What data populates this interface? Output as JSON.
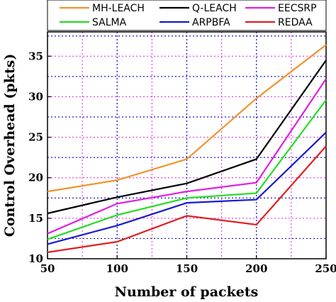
{
  "chart_data": {
    "type": "line",
    "xlabel": "Number of packets",
    "ylabel": "Control Overhead (pkts)",
    "x": [
      50,
      100,
      150,
      200,
      250
    ],
    "xlim": [
      50,
      250
    ],
    "ylim": [
      10,
      38
    ],
    "xticks": [
      50,
      100,
      150,
      200,
      250
    ],
    "yticks": [
      10,
      15,
      20,
      25,
      30,
      35
    ],
    "grid": true,
    "legend_position": "top",
    "series": [
      {
        "name": "MH-LEACH",
        "color": "#f0922a",
        "values": [
          18.3,
          19.7,
          22.3,
          29.8,
          36.4
        ]
      },
      {
        "name": "Q-LEACH",
        "color": "#000000",
        "values": [
          15.6,
          17.6,
          19.3,
          22.3,
          34.5
        ]
      },
      {
        "name": "EECSRP",
        "color": "#e020e0",
        "values": [
          13.1,
          16.8,
          18.3,
          19.4,
          32.2
        ]
      },
      {
        "name": "SALMA",
        "color": "#22dd22",
        "values": [
          12.4,
          15.4,
          17.5,
          18.1,
          29.6
        ]
      },
      {
        "name": "ARPBFA",
        "color": "#1a1acc",
        "values": [
          11.8,
          14.1,
          16.9,
          17.3,
          25.6
        ]
      },
      {
        "name": "REDAA",
        "color": "#dd2020",
        "values": [
          10.8,
          12.1,
          15.3,
          14.2,
          23.9
        ]
      }
    ]
  }
}
